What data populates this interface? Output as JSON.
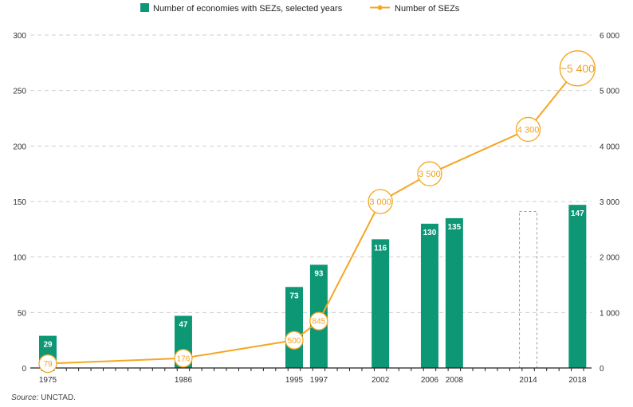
{
  "chart_data": {
    "type": "bar",
    "title": "",
    "legend": {
      "placement": "top-center",
      "entries": [
        {
          "name": "Number of economies with SEZs, selected years",
          "kind": "bar",
          "color": "#0e9775"
        },
        {
          "name": "Number of SEZs",
          "kind": "line",
          "color": "#f5a623"
        }
      ]
    },
    "x": {
      "label": "",
      "range": [
        1974,
        2019
      ],
      "tick_labels": [
        "1975",
        "1986",
        "1995",
        "1997",
        "2002",
        "2006",
        "2008",
        "2014",
        "2018"
      ],
      "minor_ticks_every_year": true
    },
    "y_left": {
      "label": "",
      "range": [
        0,
        300
      ],
      "ticks": [
        0,
        50,
        100,
        150,
        200,
        250,
        300
      ],
      "tick_labels": [
        "0",
        "50",
        "100",
        "150",
        "200",
        "250",
        "300"
      ]
    },
    "y_right": {
      "label": "",
      "range": [
        0,
        6000
      ],
      "ticks": [
        0,
        1000,
        2000,
        3000,
        4000,
        5000,
        6000
      ],
      "tick_labels": [
        "0",
        "1 000",
        "2 000",
        "3 000",
        "4 000",
        "5 000",
        "6 000"
      ]
    },
    "grid": "horizontal-dashed",
    "series": [
      {
        "name": "Number of economies with SEZs, selected years",
        "type": "bar",
        "axis": "left",
        "color": "#0e9775",
        "points": [
          {
            "year": 1975,
            "value": 29,
            "label": "29"
          },
          {
            "year": 1986,
            "value": 47,
            "label": "47"
          },
          {
            "year": 1995,
            "value": 73,
            "label": "73"
          },
          {
            "year": 1997,
            "value": 93,
            "label": "93"
          },
          {
            "year": 2002,
            "value": 116,
            "label": "116"
          },
          {
            "year": 2006,
            "value": 130,
            "label": "130"
          },
          {
            "year": 2008,
            "value": 135,
            "label": "135"
          },
          {
            "year": 2014,
            "value": 141,
            "label": "",
            "style": "dashed-outline"
          },
          {
            "year": 2018,
            "value": 147,
            "label": "147"
          }
        ]
      },
      {
        "name": "Number of SEZs",
        "type": "line",
        "axis": "right",
        "color": "#f5a623",
        "points": [
          {
            "year": 1975,
            "value": 79,
            "label": "79"
          },
          {
            "year": 1986,
            "value": 176,
            "label": "176"
          },
          {
            "year": 1995,
            "value": 500,
            "label": "500"
          },
          {
            "year": 1997,
            "value": 845,
            "label": "845"
          },
          {
            "year": 2002,
            "value": 3000,
            "label": "3 000"
          },
          {
            "year": 2006,
            "value": 3500,
            "label": "3 500"
          },
          {
            "year": 2014,
            "value": 4300,
            "label": "4 300"
          },
          {
            "year": 2018,
            "value": 5400,
            "label": "~5 400"
          }
        ]
      }
    ]
  },
  "source": {
    "prefix": "Source:",
    "text": " UNCTAD."
  }
}
